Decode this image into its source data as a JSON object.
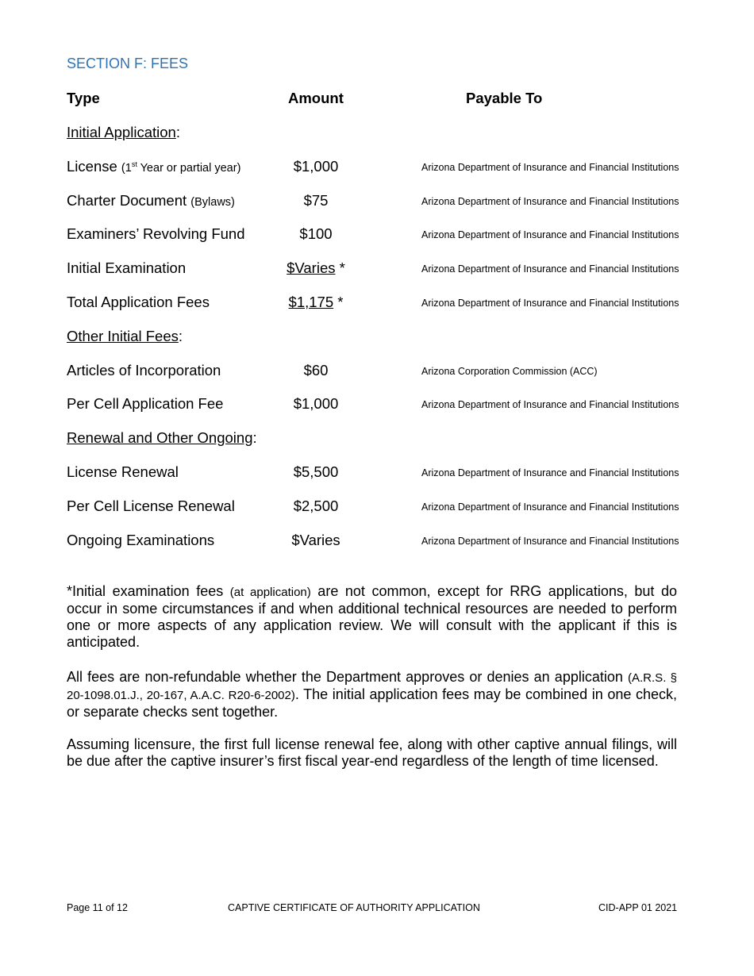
{
  "section_title": "SECTION F:  FEES",
  "headers": {
    "type": "Type",
    "amount": "Amount",
    "payable": "Payable To"
  },
  "rows": [
    {
      "kind": "section",
      "label": "Initial Application",
      "suffix": ":"
    },
    {
      "kind": "fee",
      "type": "License",
      "note_pre": "(1",
      "note_sup": "st",
      "note_post": " Year or partial year)",
      "amount": "$1,000",
      "asterisk": "",
      "underline": false,
      "payable": "Arizona Department of Insurance and Financial Institutions"
    },
    {
      "kind": "fee",
      "type": "Charter Document",
      "note": "(Bylaws)",
      "amount": "$75",
      "asterisk": "",
      "underline": false,
      "payable": "Arizona Department of Insurance and Financial Institutions"
    },
    {
      "kind": "fee",
      "type": "Examiners’ Revolving Fund",
      "amount": "$100",
      "asterisk": "",
      "underline": false,
      "payable": "Arizona Department of Insurance and Financial Institutions"
    },
    {
      "kind": "fee",
      "type": "Initial Examination",
      "amount": "$Varies",
      "asterisk": " *",
      "underline": true,
      "payable": "Arizona Department of Insurance and Financial Institutions"
    },
    {
      "kind": "fee",
      "type": "Total Application Fees",
      "amount": "$1,175",
      "asterisk": " *",
      "underline": true,
      "payable": "Arizona Department of Insurance and Financial Institutions"
    },
    {
      "kind": "section",
      "label": "Other Initial Fees",
      "suffix": ":"
    },
    {
      "kind": "fee",
      "type": "Articles of Incorporation",
      "amount": "$60",
      "asterisk": "",
      "underline": false,
      "payable": "Arizona Corporation Commission (ACC)"
    },
    {
      "kind": "fee",
      "type": "Per Cell Application Fee",
      "amount": "$1,000",
      "asterisk": "",
      "underline": false,
      "payable": "Arizona Department of Insurance and Financial Institutions"
    },
    {
      "kind": "section",
      "label": "Renewal and Other Ongoing",
      "suffix": ":"
    },
    {
      "kind": "fee",
      "type": "License Renewal",
      "amount": "$5,500",
      "asterisk": "",
      "underline": false,
      "payable": "Arizona Department of Insurance and Financial Institutions"
    },
    {
      "kind": "fee",
      "type": "Per Cell License Renewal",
      "amount": "$2,500",
      "asterisk": "",
      "underline": false,
      "payable": "Arizona Department of Insurance and Financial Institutions"
    },
    {
      "kind": "fee",
      "type": "Ongoing Examinations",
      "amount": "$Varies",
      "asterisk": "",
      "underline": false,
      "payable": "Arizona Department of Insurance and Financial Institutions"
    }
  ],
  "paragraphs": {
    "p1_a": "*Initial examination fees ",
    "p1_small": "(at application)",
    "p1_b": " are not common, except for RRG applications, but do occur in some circumstances if and when additional technical resources are needed to perform one or more aspects of any application review. We will consult with the applicant if this is anticipated.",
    "p2_a": "All fees are non-refundable whether the Department approves or denies an application ",
    "p2_small": "(A.R.S. § 20-1098.01.J., 20-167, A.A.C. R20-6-2002)",
    "p2_b": ". The initial application fees may be combined in one check, or separate checks sent together.",
    "p3": "Assuming licensure, the first full license renewal fee, along with other captive annual filings, will be due after the captive insurer’s first fiscal year-end regardless of the length of time licensed."
  },
  "footer": {
    "page": "Page 11 of 12",
    "form_title": "CAPTIVE CERTIFICATE OF AUTHORITY APPLICATION",
    "form_id": "CID-APP 01 2021"
  },
  "colors": {
    "section_title": "#2e74b5"
  }
}
